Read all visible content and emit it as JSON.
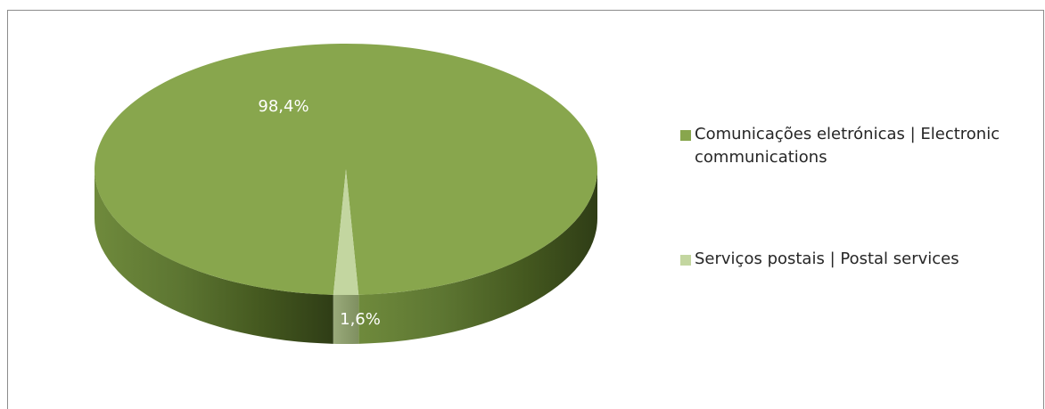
{
  "chart_data": {
    "type": "pie",
    "style": "3d",
    "slices": [
      {
        "label": "Comunicações eletrónicas | Electronic communications",
        "value": 98.4,
        "data_label": "98,4%",
        "color": "#88a64d"
      },
      {
        "label": "Serviços postais | Postal services",
        "value": 1.6,
        "data_label": "1,6%",
        "color": "#c3d6a0"
      }
    ],
    "legend_position": "right"
  }
}
